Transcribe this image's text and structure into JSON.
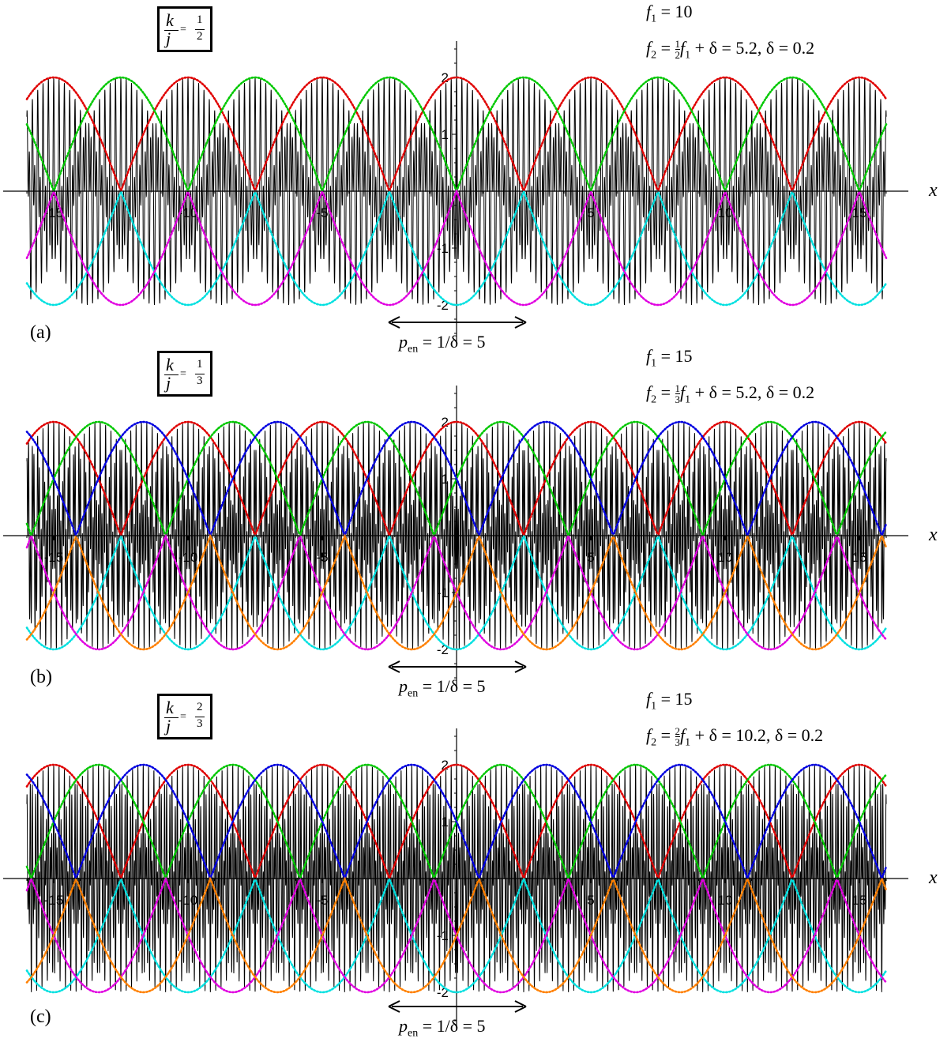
{
  "panels": [
    {
      "letter": "(a)",
      "ratio": {
        "num": "1",
        "den": "2",
        "k": "k",
        "j": "j"
      },
      "f1_line": "= 10",
      "f2_line": "= ½f₁ + δ = 5.2,   δ = 0.2",
      "f2_parts": {
        "frac_num": "1",
        "frac_den": "2",
        "rest": "+ δ = 5.2,   δ = 0.2"
      },
      "pen": {
        "p": "p",
        "sub": "en",
        "rest": "= 1/δ = 5"
      },
      "xlabel": "x"
    },
    {
      "letter": "(b)",
      "ratio": {
        "num": "1",
        "den": "3",
        "k": "k",
        "j": "j"
      },
      "f1_line": "= 15",
      "f2_parts": {
        "frac_num": "1",
        "frac_den": "3",
        "rest": "+ δ = 5.2,   δ = 0.2"
      },
      "pen": {
        "p": "p",
        "sub": "en",
        "rest": "= 1/δ = 5"
      },
      "xlabel": "x"
    },
    {
      "letter": "(c)",
      "ratio": {
        "num": "2",
        "den": "3",
        "k": "k",
        "j": "j"
      },
      "f1_line": "= 15",
      "f2_parts": {
        "frac_num": "2",
        "frac_den": "3",
        "rest": "+ δ = 10.2,   δ = 0.2"
      },
      "pen": {
        "p": "p",
        "sub": "en",
        "rest": "= 1/δ = 5"
      },
      "xlabel": "x"
    }
  ],
  "chart_data": [
    {
      "type": "line",
      "panel": "(a)",
      "xlim": [
        -16,
        16
      ],
      "ylim": [
        -2,
        2
      ],
      "x_ticks": [
        "-15",
        "-10",
        "-5",
        "5",
        "10",
        "15"
      ],
      "y_ticks": [
        "2",
        "1",
        "-1",
        "-2"
      ],
      "signal": "cos(2π·f1·x) + cos(2π·f2·x)",
      "f1": 10,
      "f2": 5.2,
      "delta": 0.2,
      "k_over_j": "1/2",
      "envelope_period": 5,
      "envelope_colors": [
        "#e00000",
        "#00c800",
        "#00e0e0",
        "#e000e0"
      ]
    },
    {
      "type": "line",
      "panel": "(b)",
      "xlim": [
        -16,
        16
      ],
      "ylim": [
        -2,
        2
      ],
      "x_ticks": [
        "-15",
        "-10",
        "-5",
        "5",
        "10",
        "15"
      ],
      "y_ticks": [
        "2",
        "1",
        "-1",
        "-2"
      ],
      "signal": "cos(2π·f1·x) + cos(2π·f2·x)",
      "f1": 15,
      "f2": 5.2,
      "delta": 0.2,
      "k_over_j": "1/3",
      "envelope_period": 5,
      "envelope_colors": [
        "#e00000",
        "#00c800",
        "#0000e0",
        "#00e0e0",
        "#e000e0",
        "#ff8000"
      ]
    },
    {
      "type": "line",
      "panel": "(c)",
      "xlim": [
        -16,
        16
      ],
      "ylim": [
        -2,
        2
      ],
      "x_ticks": [
        "-15",
        "-10",
        "-5",
        "5",
        "10",
        "15"
      ],
      "y_ticks": [
        "2",
        "1",
        "-1",
        "-2"
      ],
      "signal": "cos(2π·f1·x) + cos(2π·f2·x)",
      "f1": 15,
      "f2": 10.2,
      "delta": 0.2,
      "k_over_j": "2/3",
      "envelope_period": 5,
      "envelope_colors": [
        "#e00000",
        "#00c800",
        "#0000e0",
        "#00e0e0",
        "#e000e0",
        "#ff8000"
      ]
    }
  ]
}
